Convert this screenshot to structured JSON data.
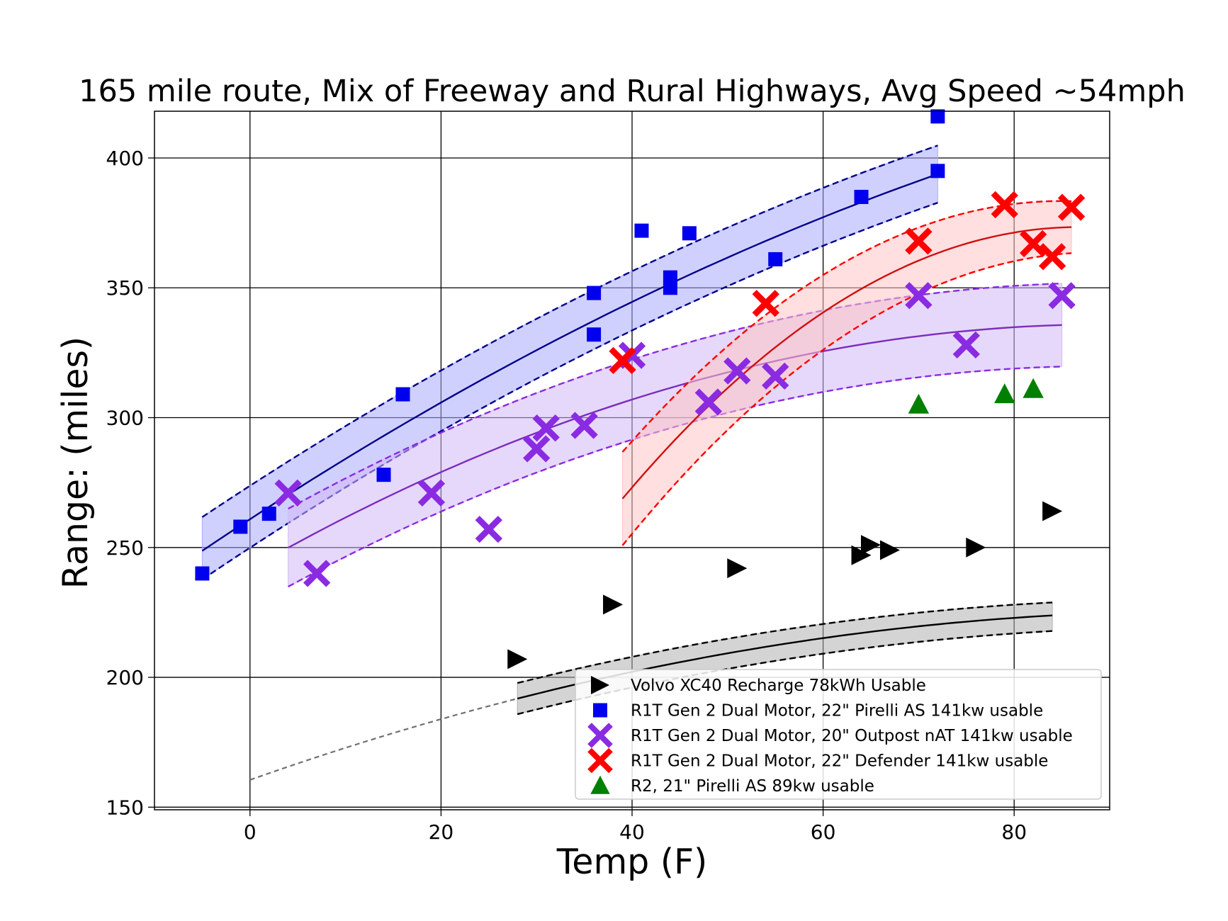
{
  "chart_data": {
    "type": "scatter",
    "title": "165 mile route, Mix of Freeway and Rural Highways, Avg Speed ~54mph",
    "xlabel": "Temp (F)",
    "ylabel": "Range: (miles)",
    "xlim": [
      -10,
      90
    ],
    "ylim": [
      149,
      418
    ],
    "x_ticks": [
      0,
      20,
      40,
      60,
      80
    ],
    "y_ticks": [
      150,
      200,
      250,
      300,
      350,
      400
    ],
    "grid": true,
    "legend_position": "lower-right",
    "series": [
      {
        "name": "Volvo XC40 Recharge 78kWh Usable",
        "marker": "triangle-right",
        "color": "#000000",
        "band_color": "#b0b0b0",
        "points": [
          [
            28,
            207
          ],
          [
            38,
            228
          ],
          [
            51,
            242
          ],
          [
            64,
            247
          ],
          [
            65,
            251
          ],
          [
            67,
            249
          ],
          [
            76,
            250
          ],
          [
            84,
            264
          ]
        ],
        "fit": {
          "x_start": 28,
          "x_end": 84,
          "coeffs": [
            0.0065,
            1.3,
            160.5
          ]
        },
        "band": {
          "upper_offset": 6,
          "lower_offset": -6,
          "upper_end": 5,
          "lower_end": -6
        },
        "extrapolation": {
          "x_start": 0,
          "x_end": 28,
          "color": "#707070"
        }
      },
      {
        "name": "R1T Gen 2 Dual Motor, 22\" Pirelli AS 141kw usable",
        "marker": "square",
        "color": "#0000ee",
        "band_color": "#aaaaff",
        "points": [
          [
            -5,
            240
          ],
          [
            -1,
            258
          ],
          [
            2,
            263
          ],
          [
            14,
            278
          ],
          [
            16,
            309
          ],
          [
            36,
            348
          ],
          [
            36,
            332
          ],
          [
            41,
            372
          ],
          [
            44,
            354
          ],
          [
            44,
            350
          ],
          [
            46,
            371
          ],
          [
            55,
            361
          ],
          [
            64,
            385
          ],
          [
            72,
            416
          ],
          [
            72,
            395
          ]
        ],
        "fit": {
          "x_start": -5,
          "x_end": 72,
          "coeffs": [
            0.0077,
            2.4,
            260.9
          ]
        },
        "band": {
          "upper_offset": 13,
          "lower_offset": -11,
          "upper_end": 11,
          "lower_end": -11
        }
      },
      {
        "name": "R1T Gen 2 Dual Motor, 20\" Outpost nAT 141kw usable",
        "marker": "x",
        "color": "#8a2be2",
        "band_color": "#d2b8f5",
        "points": [
          [
            4,
            271
          ],
          [
            7,
            240
          ],
          [
            19,
            271
          ],
          [
            25,
            257
          ],
          [
            30,
            288
          ],
          [
            31,
            296
          ],
          [
            35,
            297
          ],
          [
            40,
            324
          ],
          [
            48,
            306
          ],
          [
            51,
            318
          ],
          [
            55,
            316
          ],
          [
            70,
            347
          ],
          [
            75,
            328
          ],
          [
            85,
            347
          ]
        ],
        "fit": {
          "x_start": 4,
          "x_end": 85,
          "coeffs": [
            0.0117,
            2.1,
            241.7
          ]
        },
        "band": {
          "upper_offset": 15,
          "lower_offset": -15,
          "upper_end": 16,
          "lower_end": -16
        }
      },
      {
        "name": "R1T Gen 2 Dual Motor, 22\" Defender 141kw usable",
        "marker": "x",
        "color": "#ff0000",
        "band_color": "#ffc4c4",
        "points": [
          [
            39,
            322
          ],
          [
            54,
            344
          ],
          [
            70,
            368
          ],
          [
            79,
            382
          ],
          [
            82,
            367
          ],
          [
            84,
            362
          ],
          [
            86,
            381
          ]
        ],
        "fit": {
          "x_start": 39,
          "x_end": 86,
          "coeffs": [
            0.0458,
            7.95,
            28.4
          ]
        },
        "band": {
          "upper_offset": 18,
          "lower_offset": -18,
          "upper_end": 10,
          "lower_end": -10
        }
      },
      {
        "name": "R2, 21\" Pirelli AS 89kw usable",
        "marker": "triangle-up",
        "color": "#008000",
        "points": [
          [
            70,
            305
          ],
          [
            79,
            309
          ],
          [
            82,
            311
          ]
        ]
      }
    ]
  }
}
